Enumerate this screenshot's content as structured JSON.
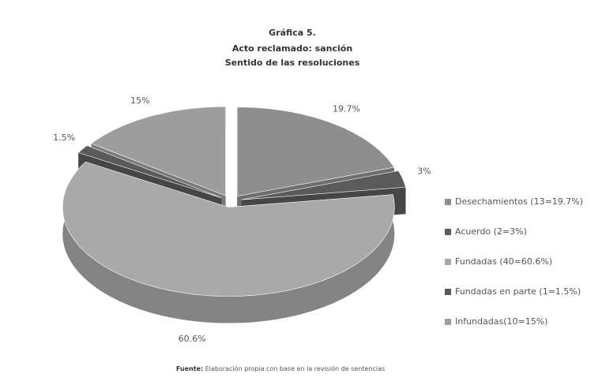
{
  "chart_data": {
    "type": "pie",
    "title": [
      "Gráfica 5.",
      "Acto reclamado: sanción",
      "Sentido de las resoluciones"
    ],
    "categories": [
      "Desechamientos (13=19.7%)",
      "Acuerdo (2=3%)",
      "Fundadas (40=60.6%)",
      "Fundadas en parte (1=1.5%)",
      "Infundadas(10=15%)"
    ],
    "values": [
      19.7,
      3,
      60.6,
      1.5,
      15
    ],
    "value_labels": [
      "19.7%",
      "3%",
      "60.6%",
      "1.5%",
      "15%"
    ],
    "colors": [
      "#8e8e8e",
      "#5a5a5a",
      "#a9a9a9",
      "#5a5a5a",
      "#9d9d9d"
    ],
    "legend": "right",
    "source": {
      "label": "Fuente:",
      "text": "Elaboración propia con base en la revisión de sentencias"
    }
  }
}
